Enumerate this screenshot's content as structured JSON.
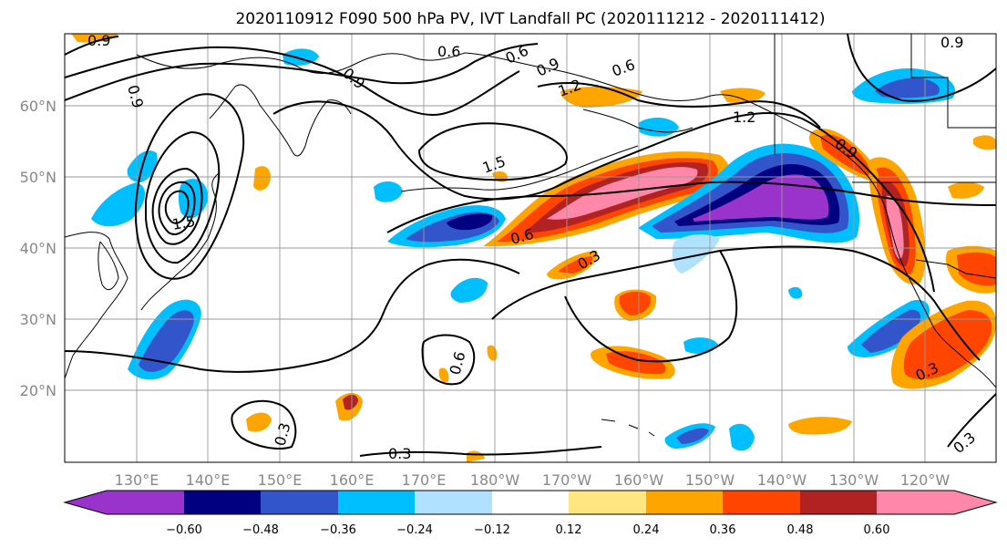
{
  "title": "2020110912 F090 500 hPa PV, IVT Landfall PC (2020111212 - 2020111412)",
  "map": {
    "lat_labels": [
      "60°N",
      "50°N",
      "40°N",
      "30°N",
      "20°N"
    ],
    "lon_labels": [
      "130°E",
      "140°E",
      "150°E",
      "160°E",
      "170°E",
      "180°W",
      "170°W",
      "160°W",
      "150°W",
      "140°W",
      "130°W",
      "120°W"
    ],
    "contour_labels": [
      "0.9",
      "0.6",
      "0.6",
      "0.9",
      "0.6",
      "1.2",
      "0.9",
      "0.9",
      "0.9",
      "1.2",
      "1.5",
      "1.5",
      "0.6",
      "0.3",
      "0.6",
      "0.3",
      "0.3",
      "0.3",
      "0.3",
      "0.9"
    ]
  },
  "colorbar": {
    "ticks": [
      "−0.60",
      "−0.48",
      "−0.36",
      "−0.24",
      "−0.12",
      "0.12",
      "0.24",
      "0.36",
      "0.48",
      "0.60"
    ],
    "colors": [
      "#9933cc",
      "#000080",
      "#3355cc",
      "#00bfff",
      "#b0e2ff",
      "#ffffff",
      "#ffe680",
      "#ffa500",
      "#ff4500",
      "#b22222",
      "#ff88aa"
    ]
  }
}
